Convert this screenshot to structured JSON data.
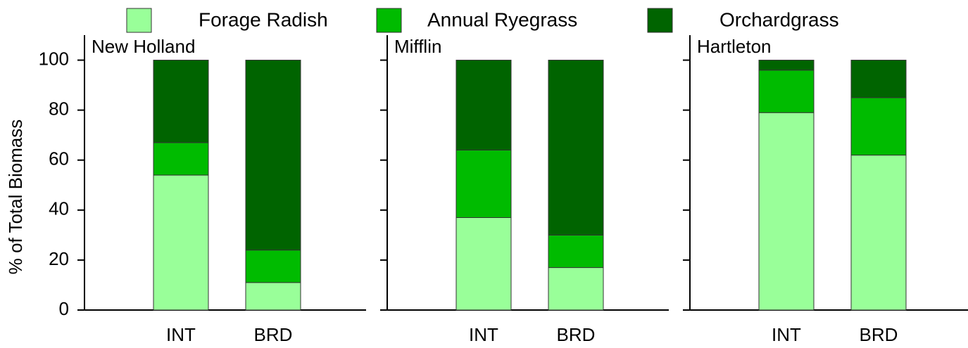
{
  "legend": [
    {
      "name": "Forage Radish",
      "color": "#99ff99"
    },
    {
      "name": "Annual Ryegrass",
      "color": "#00bb00"
    },
    {
      "name": "Orchardgrass",
      "color": "#006400"
    }
  ],
  "chart_data": [
    {
      "type": "bar",
      "stacked": true,
      "title": "New Holland",
      "ylabel": "% of Total Biomass",
      "categories": [
        "INT",
        "BRD"
      ],
      "ylim": [
        0,
        110
      ],
      "yticks": [
        0,
        20,
        40,
        60,
        80,
        100
      ],
      "series": [
        {
          "values": [
            54,
            11
          ]
        },
        {
          "values": [
            13,
            13
          ]
        },
        {
          "values": [
            33,
            76
          ]
        }
      ]
    },
    {
      "type": "bar",
      "stacked": true,
      "title": "Mifflin",
      "categories": [
        "INT",
        "BRD"
      ],
      "ylim": [
        0,
        110
      ],
      "yticks": [
        0,
        20,
        40,
        60,
        80,
        100
      ],
      "series": [
        {
          "values": [
            37,
            17
          ]
        },
        {
          "values": [
            27,
            13
          ]
        },
        {
          "values": [
            36,
            70
          ]
        }
      ]
    },
    {
      "type": "bar",
      "stacked": true,
      "title": "Hartleton",
      "categories": [
        "INT",
        "BRD"
      ],
      "ylim": [
        0,
        110
      ],
      "yticks": [
        0,
        20,
        40,
        60,
        80,
        100
      ],
      "series": [
        {
          "values": [
            79,
            62
          ]
        },
        {
          "values": [
            17,
            23
          ]
        },
        {
          "values": [
            4,
            15
          ]
        }
      ]
    }
  ]
}
